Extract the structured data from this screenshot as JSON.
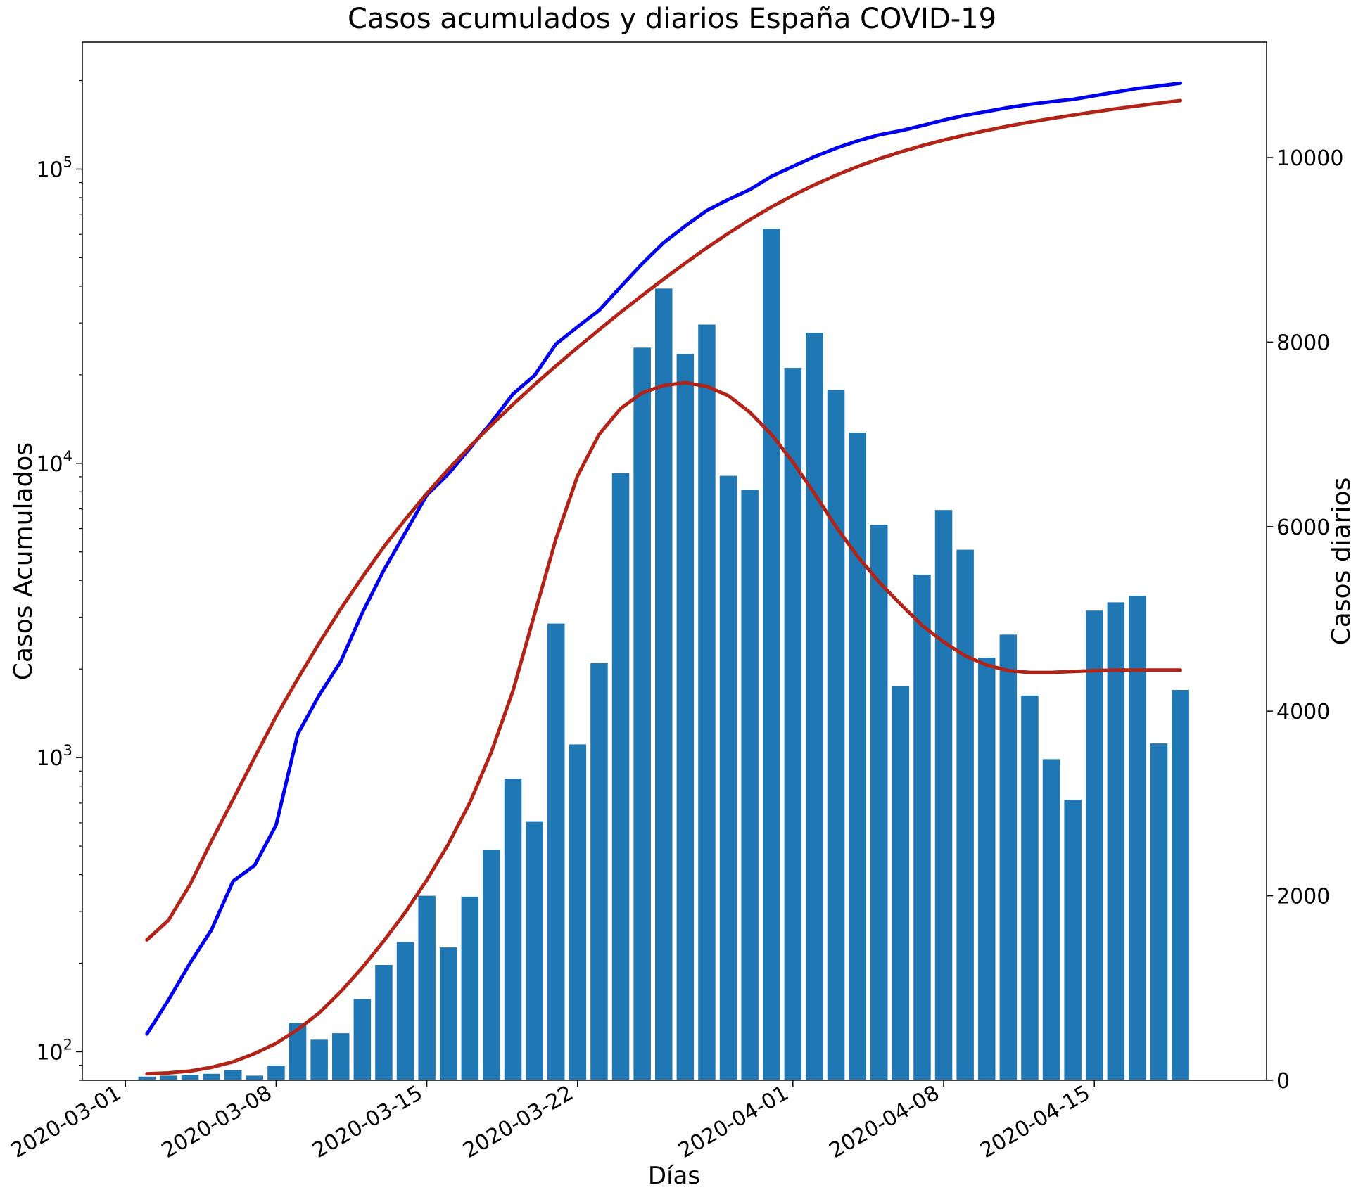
{
  "chart_data": {
    "title": "Casos acumulados y diarios España COVID-19",
    "xlabel": "Días",
    "ylabel_left": "Casos Acumulados",
    "ylabel_right": "Casos diarios",
    "left_axis": {
      "scale": "log",
      "ylim": [
        80,
        270000
      ],
      "major_ticks": [
        {
          "value": 100,
          "base": "10",
          "exp": "2"
        },
        {
          "value": 1000,
          "base": "10",
          "exp": "3"
        },
        {
          "value": 10000,
          "base": "10",
          "exp": "4"
        },
        {
          "value": 100000,
          "base": "10",
          "exp": "5"
        }
      ]
    },
    "right_axis": {
      "scale": "linear",
      "ylim": [
        0,
        11250
      ],
      "ticks": [
        0,
        2000,
        4000,
        6000,
        8000,
        10000
      ],
      "tick_labels": [
        "0",
        "2000",
        "4000",
        "6000",
        "8000",
        "10000"
      ]
    },
    "x_axis": {
      "type": "date",
      "start": "2020-03-02",
      "range": [
        "2020-02-28",
        "2020-04-23"
      ],
      "ticks": [
        "2020-03-01",
        "2020-03-08",
        "2020-03-15",
        "2020-03-22",
        "2020-04-01",
        "2020-04-08",
        "2020-04-15"
      ],
      "tick_labels": [
        "2020-03-01",
        "2020-03-08",
        "2020-03-15",
        "2020-03-22",
        "2020-04-01",
        "2020-04-08",
        "2020-04-15"
      ]
    },
    "colors": {
      "bars": "#1f77b4",
      "cumulative_line": "#0000ee",
      "smoothed_lines": "#b22418"
    },
    "bars_daily": [
      40,
      50,
      60,
      70,
      110,
      50,
      160,
      620,
      440,
      510,
      880,
      1250,
      1500,
      2000,
      1440,
      1990,
      2500,
      3270,
      2800,
      4950,
      3640,
      4520,
      6580,
      7940,
      8580,
      7870,
      8190,
      6550,
      6400,
      9230,
      7720,
      8100,
      7480,
      7020,
      6020,
      4270,
      5480,
      6180,
      5750,
      4580,
      4830,
      4170,
      3480,
      3040,
      5090,
      5180,
      5250,
      3650,
      4230
    ],
    "cumulative": [
      115,
      150,
      200,
      260,
      380,
      430,
      590,
      1200,
      1630,
      2120,
      3100,
      4330,
      5810,
      7800,
      9200,
      11250,
      13800,
      17200,
      19900,
      25450,
      29100,
      33100,
      39800,
      47700,
      56200,
      64100,
      72300,
      78800,
      85200,
      94400,
      102100,
      110200,
      117700,
      124700,
      130700,
      135000,
      140500,
      146700,
      152400,
      157000,
      161800,
      166000,
      169500,
      172500,
      177600,
      182800,
      188100,
      191700,
      196000
    ],
    "smoothed_cumulative": [
      240,
      280,
      370,
      520,
      720,
      1000,
      1380,
      1850,
      2450,
      3200,
      4100,
      5200,
      6450,
      7900,
      9550,
      11400,
      13500,
      15850,
      18500,
      21450,
      24750,
      28450,
      32600,
      37200,
      42300,
      47900,
      54000,
      60500,
      67300,
      74300,
      81400,
      88400,
      95300,
      102000,
      108400,
      114400,
      120100,
      125500,
      130600,
      135400,
      140000,
      144400,
      148600,
      152600,
      156500,
      160300,
      164000,
      167500,
      171000
    ],
    "smoothed_daily": [
      70,
      80,
      100,
      140,
      200,
      290,
      400,
      550,
      730,
      960,
      1220,
      1510,
      1820,
      2170,
      2560,
      3010,
      3560,
      4220,
      5050,
      5870,
      6550,
      7000,
      7280,
      7450,
      7530,
      7560,
      7520,
      7420,
      7240,
      7000,
      6700,
      6360,
      6000,
      5680,
      5400,
      5160,
      4930,
      4750,
      4600,
      4500,
      4440,
      4420,
      4420,
      4430,
      4440,
      4445,
      4445,
      4445,
      4445
    ]
  }
}
